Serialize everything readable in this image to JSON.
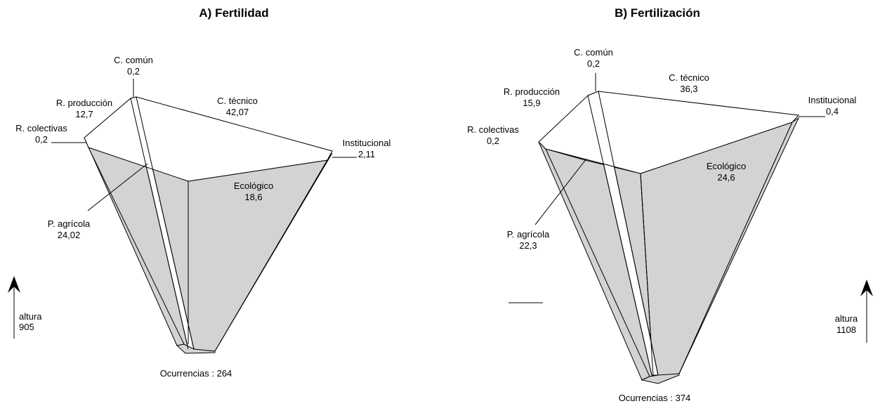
{
  "diagrams": [
    {
      "title": "A) Fertilidad",
      "occurrences": "Ocurrencias : 264",
      "height_label": "altura",
      "height_value": "905",
      "nodes": [
        {
          "name": "C. común",
          "value": "0,2"
        },
        {
          "name": "R. producción",
          "value": "12,7"
        },
        {
          "name": "R. colectivas",
          "value": "0,2"
        },
        {
          "name": "C. técnico",
          "value": "42,07"
        },
        {
          "name": "Institucional",
          "value": "2,11"
        },
        {
          "name": "Ecológico",
          "value": "18,6"
        },
        {
          "name": "P. agrícola",
          "value": "24,02"
        }
      ]
    },
    {
      "title": "B) Fertilización",
      "occurrences": "Ocurrencias : 374",
      "height_label": "altura",
      "height_value": "1108",
      "nodes": [
        {
          "name": "C. común",
          "value": "0,2"
        },
        {
          "name": "R. producción",
          "value": "15,9"
        },
        {
          "name": "R. colectivas",
          "value": "0,2"
        },
        {
          "name": "C. técnico",
          "value": "36,3"
        },
        {
          "name": "Institucional",
          "value": "0,4"
        },
        {
          "name": "Ecológico",
          "value": "24,6"
        },
        {
          "name": "P. agrícola",
          "value": "22,3"
        }
      ]
    }
  ]
}
